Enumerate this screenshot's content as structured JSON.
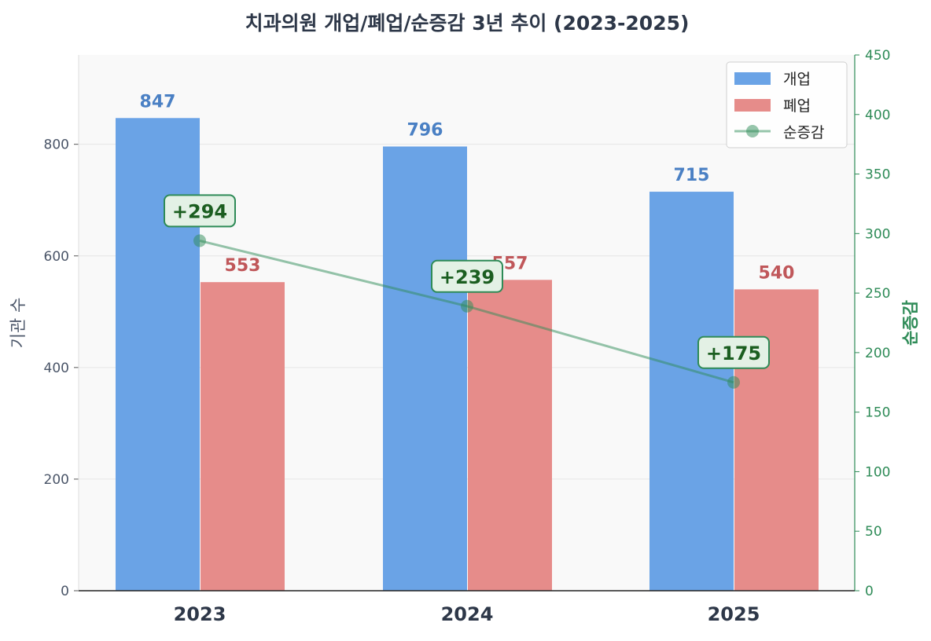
{
  "chart_data": {
    "type": "bar",
    "title": "치과의원 개업/폐업/순증감 3년 추이 (2023-2025)",
    "categories": [
      "2023",
      "2024",
      "2025"
    ],
    "series": [
      {
        "name": "개업",
        "type": "bar",
        "axis": "left",
        "values": [
          847,
          796,
          715
        ],
        "color": "#6aa3e6",
        "label_color": "#4a80c4"
      },
      {
        "name": "폐업",
        "type": "bar",
        "axis": "left",
        "values": [
          553,
          557,
          540
        ],
        "color": "#e68c8a",
        "label_color": "#c0575a"
      },
      {
        "name": "순증감",
        "type": "line",
        "axis": "right",
        "values": [
          294,
          239,
          175
        ],
        "labels": [
          "+294",
          "+239",
          "+175"
        ],
        "color": "#2e8b57",
        "label_color": "#1b5e20"
      }
    ],
    "ylabel": "기관 수",
    "y2label": "순증감",
    "ylim": [
      0,
      960
    ],
    "y2lim": [
      0,
      450
    ],
    "yticks": [
      0,
      200,
      400,
      600,
      800
    ],
    "y2ticks": [
      0,
      50,
      100,
      150,
      200,
      250,
      300,
      350,
      400,
      450
    ],
    "grid": true,
    "legend": "top-right"
  }
}
